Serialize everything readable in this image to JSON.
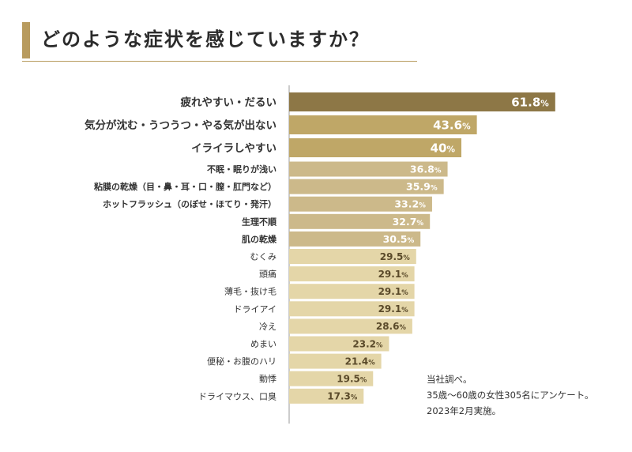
{
  "page": {
    "title": "どのような症状を感じていますか？"
  },
  "chart_data": {
    "type": "bar",
    "orientation": "horizontal",
    "title": "どのような症状を感じていますか？",
    "unit": "%",
    "xlim": [
      0,
      100
    ],
    "categories": [
      "疲れやすい・だるい",
      "気分が沈む・うつうつ・やる気が出ない",
      "イライラしやすい",
      "不眠・眠りが浅い",
      "粘膜の乾燥（目・鼻・耳・口・膣・肛門など）",
      "ホットフラッシュ（のぼせ・ほてり・発汗）",
      "生理不順",
      "肌の乾燥",
      "むくみ",
      "頭痛",
      "薄毛・抜け毛",
      "ドライアイ",
      "冷え",
      "めまい",
      "便秘・お腹のハリ",
      "動悸",
      "ドライマウス、口臭"
    ],
    "values": [
      61.8,
      43.6,
      40,
      36.8,
      35.9,
      33.2,
      32.7,
      30.5,
      29.5,
      29.1,
      29.1,
      29.1,
      28.6,
      23.2,
      21.4,
      19.5,
      17.3
    ],
    "value_labels": [
      "61.8",
      "43.6",
      "40",
      "36.8",
      "35.9",
      "33.2",
      "32.7",
      "30.5",
      "29.5",
      "29.1",
      "29.1",
      "29.1",
      "28.6",
      "23.2",
      "21.4",
      "19.5",
      "17.3"
    ],
    "colors": {
      "top": "#8d7746",
      "tier2": "#bfa767",
      "tier3": "#ccb98a",
      "tier4": "#e4d6a8",
      "accent": "#b89b5e"
    }
  },
  "note": {
    "lines": [
      "当社調べ。",
      "35歳〜60歳の女性305名にアンケート。",
      "2023年2月実施。"
    ]
  }
}
